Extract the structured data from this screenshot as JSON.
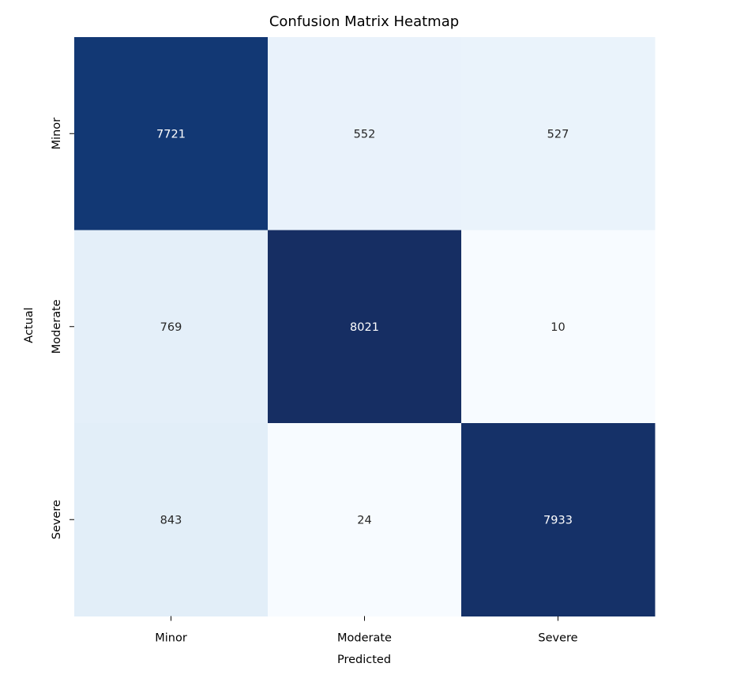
{
  "chart_data": {
    "type": "heatmap",
    "title": "Confusion Matrix Heatmap",
    "xlabel": "Predicted",
    "ylabel": "Actual",
    "x_categories": [
      "Minor",
      "Moderate",
      "Severe"
    ],
    "y_categories": [
      "Minor",
      "Moderate",
      "Severe"
    ],
    "values": [
      [
        7721,
        552,
        527
      ],
      [
        769,
        8021,
        10
      ],
      [
        843,
        24,
        7933
      ]
    ],
    "colormap": "Blues",
    "colorbar": false,
    "annotated": true,
    "colors": {
      "low": "#f7fbff",
      "high": "#162e63",
      "dark_text": "#262626",
      "light_text": "#ffffff"
    }
  }
}
